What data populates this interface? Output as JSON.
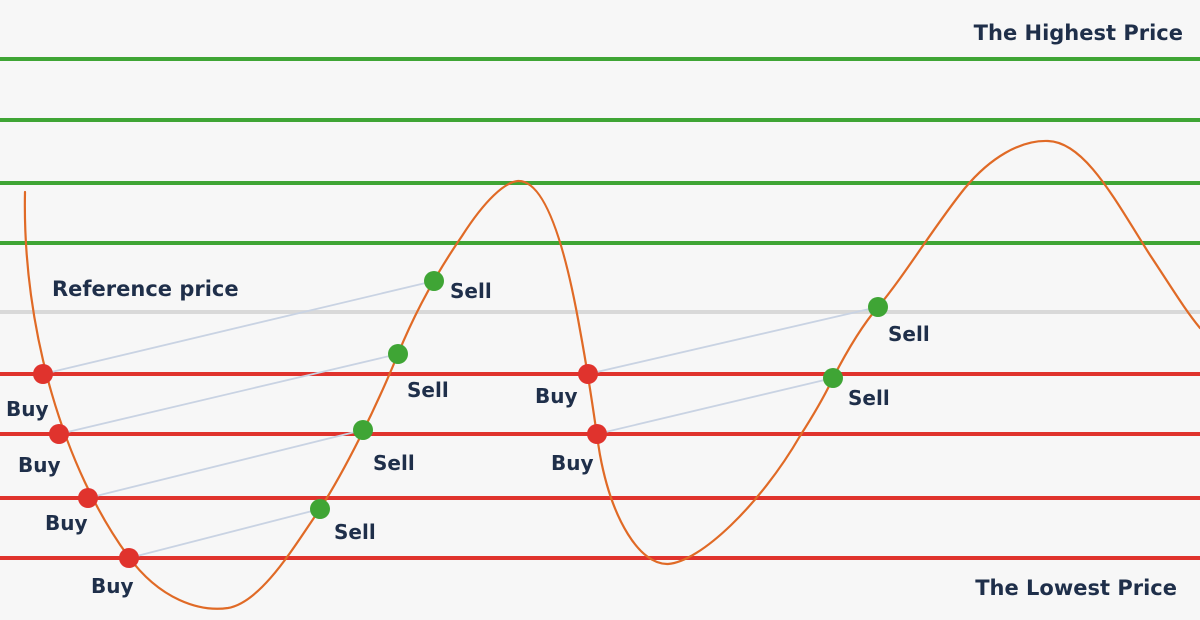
{
  "labels": {
    "highest": "The Highest Price",
    "lowest": "The Lowest Price",
    "reference": "Reference price"
  },
  "colors": {
    "background": "#f7f7f7",
    "upper_line": "#3fa535",
    "lower_line": "#e0332d",
    "reference_line": "#d9d9d9",
    "curve": "#e06a26",
    "buy_dot": "#e0332d",
    "sell_dot": "#3fa535",
    "connector": "#c9d3e3",
    "text": "#1f2f4a"
  },
  "point_labels": {
    "buy": "Buy",
    "sell": "Sell"
  }
}
